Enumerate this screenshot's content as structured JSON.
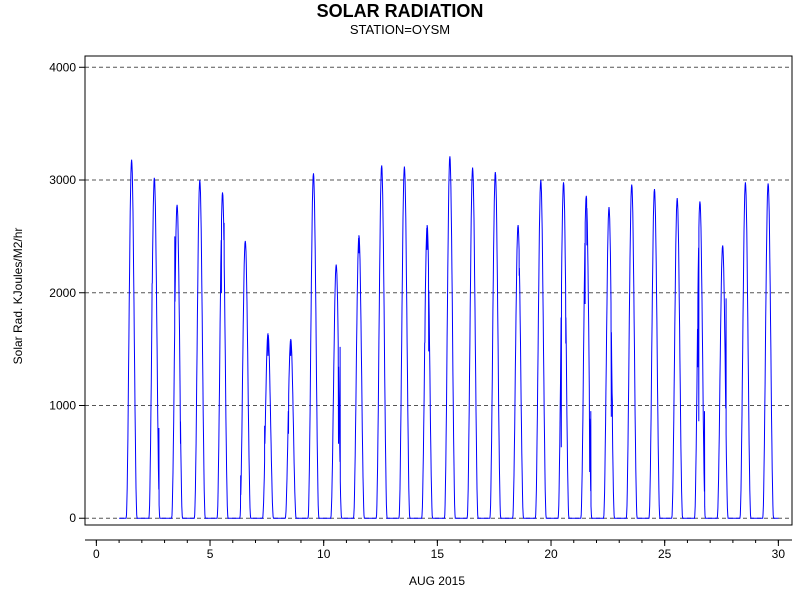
{
  "chart_data": {
    "type": "line",
    "title": "SOLAR RADIATION",
    "subtitle": "STATION=OYSM",
    "xlabel": "AUG 2015",
    "ylabel": "Solar Rad. KJoules/M2/hr",
    "xlim": [
      -0.5,
      30.6
    ],
    "ylim": [
      -60,
      4100
    ],
    "x_ticks": [
      0,
      5,
      10,
      15,
      20,
      25,
      30
    ],
    "x_minor_ticks": [
      0,
      1,
      2,
      3,
      4,
      5,
      6,
      7,
      8,
      9,
      10,
      11,
      12,
      13,
      14,
      15,
      16,
      17,
      18,
      19,
      20,
      21,
      22,
      23,
      24,
      25,
      26,
      27,
      28,
      29,
      30
    ],
    "y_ticks": [
      0,
      1000,
      2000,
      3000,
      4000
    ],
    "grid": "horizontal-dashed",
    "line_color": "#0000ff",
    "series": [
      {
        "days": [
          {
            "day": 1,
            "peak": 3180,
            "dips": []
          },
          {
            "day": 2,
            "peak": 3020,
            "dips": [
              {
                "x": 2.45,
                "y": 2080
              },
              {
                "x": 2.75,
                "y": 800
              }
            ]
          },
          {
            "day": 3,
            "peak": 2780,
            "dips": [
              {
                "x": 3.45,
                "y": 2500
              },
              {
                "x": 3.7,
                "y": 660
              }
            ]
          },
          {
            "day": 4,
            "peak": 3000,
            "dips": []
          },
          {
            "day": 5,
            "peak": 2890,
            "dips": [
              {
                "x": 5.5,
                "y": 2000
              },
              {
                "x": 5.62,
                "y": 2620
              }
            ]
          },
          {
            "day": 6,
            "peak": 2460,
            "dips": [
              {
                "x": 6.35,
                "y": 380
              }
            ]
          },
          {
            "day": 7,
            "peak": 1640,
            "dips": [
              {
                "x": 7.4,
                "y": 820
              },
              {
                "x": 7.55,
                "y": 1440
              }
            ]
          },
          {
            "day": 8,
            "peak": 1590,
            "dips": [
              {
                "x": 8.45,
                "y": 750
              },
              {
                "x": 8.55,
                "y": 1440
              }
            ]
          },
          {
            "day": 9,
            "peak": 3060,
            "dips": []
          },
          {
            "day": 10,
            "peak": 2250,
            "dips": [
              {
                "x": 10.65,
                "y": 660
              },
              {
                "x": 10.72,
                "y": 1520
              }
            ]
          },
          {
            "day": 11,
            "peak": 2510,
            "dips": [
              {
                "x": 11.55,
                "y": 2350
              }
            ]
          },
          {
            "day": 12,
            "peak": 3130,
            "dips": []
          },
          {
            "day": 13,
            "peak": 3120,
            "dips": []
          },
          {
            "day": 14,
            "peak": 2600,
            "dips": [
              {
                "x": 14.45,
                "y": 1560
              },
              {
                "x": 14.55,
                "y": 2380
              },
              {
                "x": 14.62,
                "y": 1480
              }
            ]
          },
          {
            "day": 15,
            "peak": 3210,
            "dips": []
          },
          {
            "day": 16,
            "peak": 3110,
            "dips": []
          },
          {
            "day": 17,
            "peak": 3070,
            "dips": []
          },
          {
            "day": 18,
            "peak": 2600,
            "dips": [
              {
                "x": 18.6,
                "y": 2150
              }
            ]
          },
          {
            "day": 19,
            "peak": 3000,
            "dips": []
          },
          {
            "day": 20,
            "peak": 2980,
            "dips": [
              {
                "x": 20.45,
                "y": 630
              },
              {
                "x": 20.65,
                "y": 1550
              }
            ]
          },
          {
            "day": 21,
            "peak": 2860,
            "dips": [
              {
                "x": 21.5,
                "y": 1900
              },
              {
                "x": 21.58,
                "y": 2420
              },
              {
                "x": 21.7,
                "y": 410
              },
              {
                "x": 21.75,
                "y": 950
              }
            ]
          },
          {
            "day": 22,
            "peak": 2760,
            "dips": [
              {
                "x": 22.65,
                "y": 900
              },
              {
                "x": 22.7,
                "y": 1030
              }
            ]
          },
          {
            "day": 23,
            "peak": 2960,
            "dips": []
          },
          {
            "day": 24,
            "peak": 2920,
            "dips": []
          },
          {
            "day": 25,
            "peak": 2840,
            "dips": []
          },
          {
            "day": 26,
            "peak": 2810,
            "dips": [
              {
                "x": 26.45,
                "y": 1340
              },
              {
                "x": 26.5,
                "y": 860
              },
              {
                "x": 26.75,
                "y": 950
              }
            ]
          },
          {
            "day": 27,
            "peak": 2420,
            "dips": [
              {
                "x": 27.7,
                "y": 1950
              }
            ]
          },
          {
            "day": 28,
            "peak": 2980,
            "dips": []
          },
          {
            "day": 29,
            "peak": 2970,
            "dips": []
          }
        ]
      }
    ]
  }
}
